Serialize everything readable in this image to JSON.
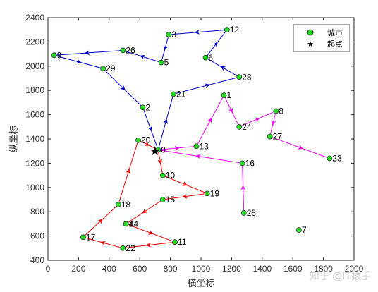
{
  "chart_data": {
    "type": "scatter",
    "xlabel": "横坐标",
    "ylabel": "纵坐标",
    "xlim": [
      0,
      2000
    ],
    "ylim": [
      400,
      2400
    ],
    "xticks": [
      0,
      200,
      400,
      600,
      800,
      1000,
      1200,
      1400,
      1600,
      1800,
      2000
    ],
    "yticks": [
      400,
      600,
      800,
      1000,
      1200,
      1400,
      1600,
      1800,
      2000,
      2200,
      2400
    ],
    "grid": false,
    "legend": {
      "placement": "top-right",
      "entries": [
        {
          "label": "城市",
          "marker": "circle",
          "color": "#22dd22"
        },
        {
          "label": "起点",
          "marker": "star",
          "color": "#000000"
        }
      ]
    },
    "start": {
      "x": 700,
      "y": 1300
    },
    "cities": [
      {
        "id": "0",
        "x": 720,
        "y": 1310
      },
      {
        "id": "1",
        "x": 1150,
        "y": 1760
      },
      {
        "id": "2",
        "x": 620,
        "y": 1660
      },
      {
        "id": "3",
        "x": 790,
        "y": 2260
      },
      {
        "id": "5",
        "x": 740,
        "y": 2030
      },
      {
        "id": "6",
        "x": 1030,
        "y": 2070
      },
      {
        "id": "8",
        "x": 1490,
        "y": 1630
      },
      {
        "id": "9",
        "x": 40,
        "y": 2090
      },
      {
        "id": "10",
        "x": 750,
        "y": 1100
      },
      {
        "id": "11",
        "x": 830,
        "y": 550
      },
      {
        "id": "12",
        "x": 1170,
        "y": 2300
      },
      {
        "id": "13",
        "x": 970,
        "y": 1340
      },
      {
        "id": "14",
        "x": 510,
        "y": 700
      },
      {
        "id": "15",
        "x": 750,
        "y": 900
      },
      {
        "id": "16",
        "x": 1270,
        "y": 1200
      },
      {
        "id": "17",
        "x": 230,
        "y": 590
      },
      {
        "id": "18",
        "x": 460,
        "y": 860
      },
      {
        "id": "19",
        "x": 1040,
        "y": 950
      },
      {
        "id": "20",
        "x": 590,
        "y": 1390
      },
      {
        "id": "21",
        "x": 820,
        "y": 1770
      },
      {
        "id": "22",
        "x": 490,
        "y": 500
      },
      {
        "id": "23",
        "x": 1840,
        "y": 1240
      },
      {
        "id": "24",
        "x": 1250,
        "y": 1500
      },
      {
        "id": "25",
        "x": 1280,
        "y": 790
      },
      {
        "id": "26",
        "x": 490,
        "y": 2130
      },
      {
        "id": "27",
        "x": 1450,
        "y": 1420
      },
      {
        "id": "28",
        "x": 1250,
        "y": 1910
      },
      {
        "id": "29",
        "x": 360,
        "y": 1980
      }
    ],
    "routes": [
      {
        "color": "#0000cc",
        "path": [
          "0",
          "21",
          "28",
          "6",
          "12",
          "3",
          "5",
          "26",
          "9",
          "29",
          "2",
          "0"
        ]
      },
      {
        "color": "#ee00ee",
        "path": [
          "0",
          "13",
          "1",
          "24",
          "8",
          "27",
          "23",
          "7",
          "25",
          "16",
          "0"
        ]
      },
      {
        "color": "#ee0000",
        "path": [
          "0",
          "10",
          "19",
          "15",
          "14",
          "11",
          "22",
          "17",
          "18",
          "20",
          "0"
        ]
      }
    ],
    "extra_points": [
      {
        "id": "7",
        "x": 1640,
        "y": 650
      },
      {
        "id": "4",
        "x": 510,
        "y": 700
      }
    ]
  },
  "watermark": "知乎 @IT猿手"
}
